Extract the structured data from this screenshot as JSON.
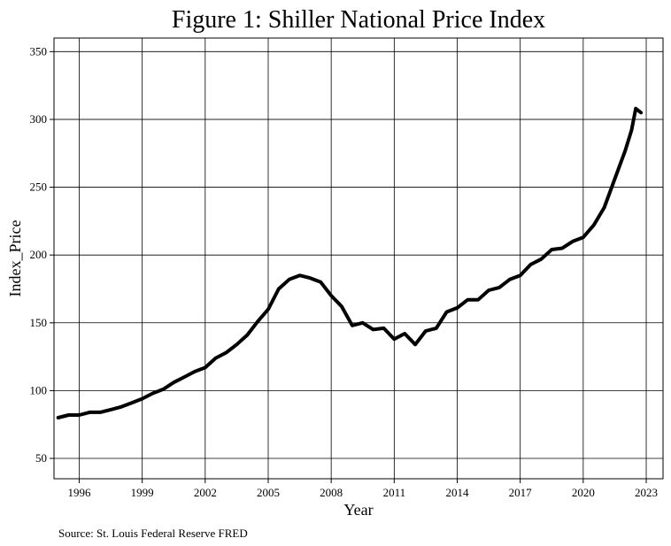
{
  "chart_data": {
    "type": "line",
    "title": "Figure 1: Shiller National Price Index",
    "xlabel": "Year",
    "ylabel": "Index_Price",
    "source": "Source: St. Louis Federal Reserve FRED",
    "xlim": [
      1994.8,
      2023.8
    ],
    "ylim": [
      35,
      360
    ],
    "x_ticks": [
      1996,
      1999,
      2002,
      2005,
      2008,
      2011,
      2014,
      2017,
      2020,
      2023
    ],
    "x_tick_labels": [
      "1996",
      "1999",
      "2002",
      "2005",
      "2008",
      "2011",
      "2014",
      "2017",
      "2020",
      "2023"
    ],
    "y_ticks": [
      50,
      100,
      150,
      200,
      250,
      300,
      350
    ],
    "y_tick_labels": [
      "50",
      "100",
      "150",
      "200",
      "250",
      "300",
      "350"
    ],
    "grid": true,
    "series": [
      {
        "color": "#000000",
        "x": [
          1995.0,
          1995.5,
          1996.0,
          1996.5,
          1997.0,
          1997.5,
          1998.0,
          1998.5,
          1999.0,
          1999.5,
          2000.0,
          2000.5,
          2001.0,
          2001.5,
          2002.0,
          2002.5,
          2003.0,
          2003.5,
          2004.0,
          2004.5,
          2005.0,
          2005.5,
          2006.0,
          2006.5,
          2007.0,
          2007.5,
          2008.0,
          2008.5,
          2009.0,
          2009.5,
          2010.0,
          2010.5,
          2011.0,
          2011.5,
          2012.0,
          2012.5,
          2013.0,
          2013.5,
          2014.0,
          2014.5,
          2015.0,
          2015.5,
          2016.0,
          2016.5,
          2017.0,
          2017.5,
          2018.0,
          2018.5,
          2019.0,
          2019.5,
          2020.0,
          2020.5,
          2021.0,
          2021.5,
          2022.0,
          2022.3,
          2022.5,
          2022.75
        ],
        "values": [
          80,
          82,
          82,
          84,
          84,
          86,
          88,
          91,
          94,
          98,
          101,
          106,
          110,
          114,
          117,
          124,
          128,
          134,
          141,
          151,
          160,
          175,
          182,
          185,
          183,
          180,
          170,
          162,
          148,
          150,
          145,
          146,
          138,
          142,
          134,
          144,
          146,
          158,
          161,
          167,
          167,
          174,
          176,
          182,
          185,
          193,
          197,
          204,
          205,
          210,
          213,
          222,
          235,
          256,
          277,
          292,
          308,
          305
        ]
      }
    ]
  }
}
